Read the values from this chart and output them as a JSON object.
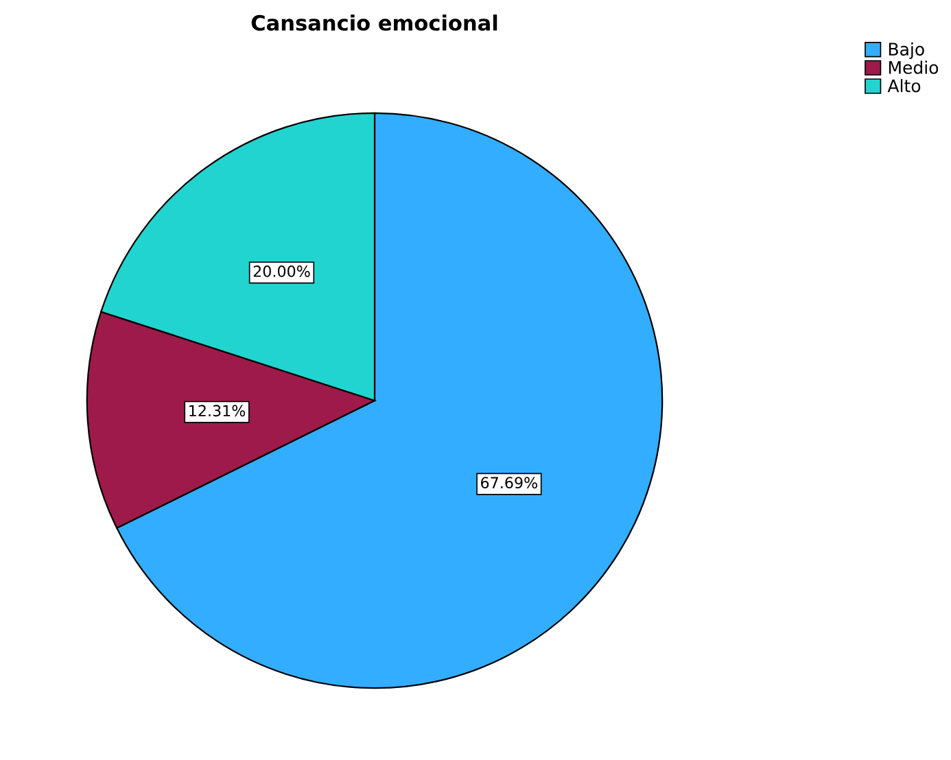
{
  "chart_data": {
    "type": "pie",
    "title": "Cansancio emocional",
    "categories": [
      "Bajo",
      "Medio",
      "Alto"
    ],
    "values": [
      67.69,
      12.31,
      20.0
    ],
    "value_labels": [
      "67.69%",
      "12.31%",
      "20.00%"
    ],
    "colors": [
      "#33adff",
      "#9e1a4a",
      "#22d4d0"
    ],
    "legend": "top right"
  }
}
